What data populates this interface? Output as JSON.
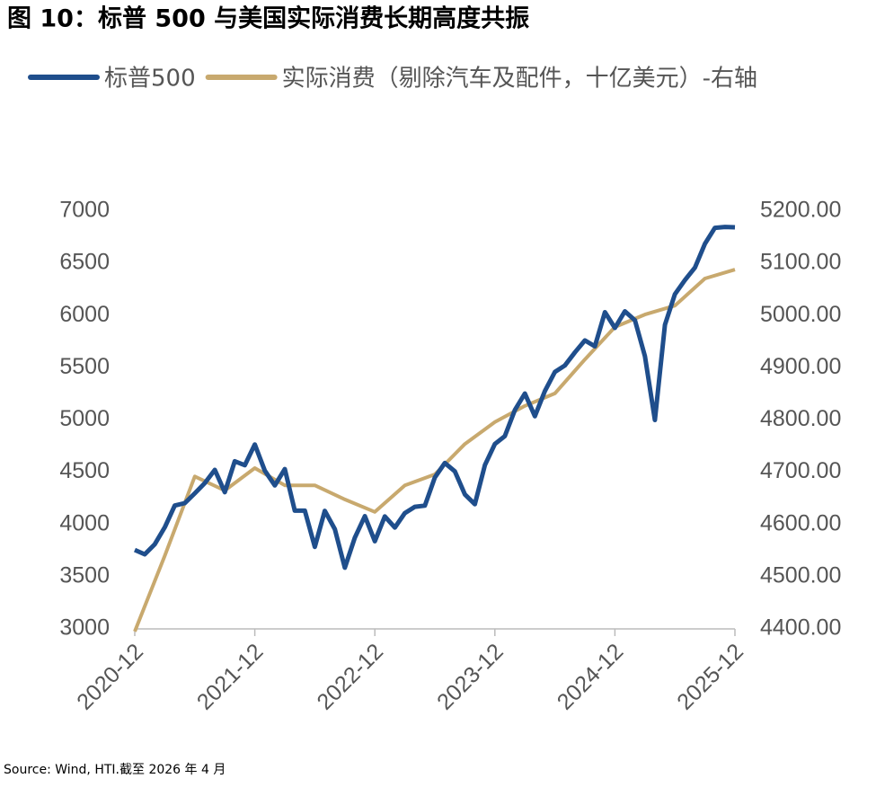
{
  "chart_data": {
    "type": "line",
    "title": "图 10：标普 500 与美国实际消费长期高度共振",
    "source": "Source: Wind, HTI.截至 2026 年 4 月",
    "xlim": [
      "2020-12",
      "2025-12"
    ],
    "xticks": [
      "2020-12",
      "2021-12",
      "2022-12",
      "2023-12",
      "2024-12",
      "2025-12"
    ],
    "ylim": [
      3000,
      7000
    ],
    "yticks": [
      3000,
      3500,
      4000,
      4500,
      5000,
      5500,
      6000,
      6500,
      7000
    ],
    "y2lim": [
      4400,
      5200
    ],
    "y2ticks": [
      {
        "value": 4400,
        "label": "4400.00"
      },
      {
        "value": 4500,
        "label": "4500.00"
      },
      {
        "value": 4600,
        "label": "4600.00"
      },
      {
        "value": 4700,
        "label": "4700.00"
      },
      {
        "value": 4800,
        "label": "4800.00"
      },
      {
        "value": 4900,
        "label": "4900.00"
      },
      {
        "value": 5000,
        "label": "5000.00"
      },
      {
        "value": 5100,
        "label": "5100.00"
      },
      {
        "value": 5200,
        "label": "5200.00"
      }
    ],
    "legend": "top",
    "series": [
      {
        "name": "标普500",
        "color": "#1f4e8c",
        "x": [
          "2020-12",
          "2021-01",
          "2021-02",
          "2021-03",
          "2021-04",
          "2021-05",
          "2021-06",
          "2021-07",
          "2021-08",
          "2021-09",
          "2021-10",
          "2021-11",
          "2021-12",
          "2022-01",
          "2022-02",
          "2022-03",
          "2022-04",
          "2022-05",
          "2022-06",
          "2022-07",
          "2022-08",
          "2022-09",
          "2022-10",
          "2022-11",
          "2022-12",
          "2023-01",
          "2023-02",
          "2023-03",
          "2023-04",
          "2023-05",
          "2023-06",
          "2023-07",
          "2023-08",
          "2023-09",
          "2023-10",
          "2023-11",
          "2023-12",
          "2024-01",
          "2024-02",
          "2024-03",
          "2024-04",
          "2024-05",
          "2024-06",
          "2024-07",
          "2024-08",
          "2024-09",
          "2024-10",
          "2024-11",
          "2024-12",
          "2025-01",
          "2025-02",
          "2025-03",
          "2025-04",
          "2025-05",
          "2025-06",
          "2025-07",
          "2025-08",
          "2025-09",
          "2025-10",
          "2025-11",
          "2025-12"
        ],
        "values": [
          3756,
          3714,
          3811,
          3973,
          4181,
          4204,
          4298,
          4395,
          4523,
          4308,
          4605,
          4567,
          4766,
          4516,
          4374,
          4530,
          4132,
          4132,
          3785,
          4130,
          3955,
          3586,
          3872,
          4080,
          3840,
          4077,
          3970,
          4109,
          4169,
          4180,
          4450,
          4589,
          4508,
          4288,
          4194,
          4568,
          4770,
          4846,
          5096,
          5254,
          5036,
          5278,
          5460,
          5522,
          5648,
          5762,
          5705,
          6032,
          5882,
          6041,
          5955,
          5612,
          5000,
          5912,
          6205,
          6339,
          6460,
          6688,
          6840,
          6849,
          6845
        ]
      },
      {
        "name": "实际消费（剔除汽车及配件，十亿美元）-右轴",
        "color": "#c8a96e",
        "axis": "y2",
        "x": [
          "2020-12",
          "2021-03",
          "2021-06",
          "2021-09",
          "2021-12",
          "2022-03",
          "2022-06",
          "2022-09",
          "2022-12",
          "2023-03",
          "2023-06",
          "2023-09",
          "2023-12",
          "2024-03",
          "2024-06",
          "2024-09",
          "2024-12",
          "2025-03",
          "2025-06",
          "2025-09",
          "2025-12"
        ],
        "values": [
          4395,
          4540,
          4692,
          4665,
          4708,
          4675,
          4675,
          4648,
          4624,
          4675,
          4696,
          4754,
          4796,
          4827,
          4851,
          4916,
          4978,
          5002,
          5019,
          5071,
          5088
        ]
      }
    ]
  }
}
